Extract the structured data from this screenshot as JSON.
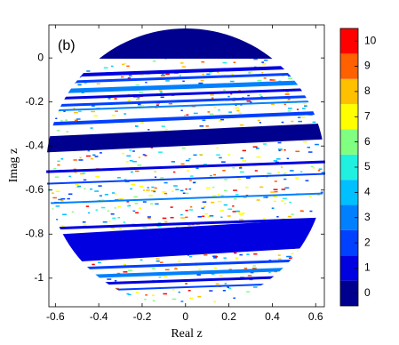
{
  "chart_data": {
    "type": "disk-map",
    "panel_label": "(b)",
    "xlabel": "Real z",
    "ylabel": "Imag z",
    "xlim": [
      -0.63,
      0.64
    ],
    "ylim": [
      -1.13,
      0.15
    ],
    "xticks": [
      -0.6,
      -0.4,
      -0.2,
      0,
      0.2,
      0.4,
      0.6
    ],
    "yticks": [
      -1,
      -0.8,
      -0.6,
      -0.4,
      -0.2,
      0
    ],
    "colorbar": {
      "lim": [
        -0.5,
        10.5
      ],
      "ticks": [
        0,
        1,
        2,
        3,
        4,
        5,
        6,
        7,
        8,
        9,
        10
      ],
      "colors": [
        "#00008f",
        "#0000e0",
        "#0040ff",
        "#0080ff",
        "#00c0ff",
        "#20f0e0",
        "#80ff80",
        "#ffff00",
        "#ffc000",
        "#ff6000",
        "#ff0000"
      ]
    }
  }
}
